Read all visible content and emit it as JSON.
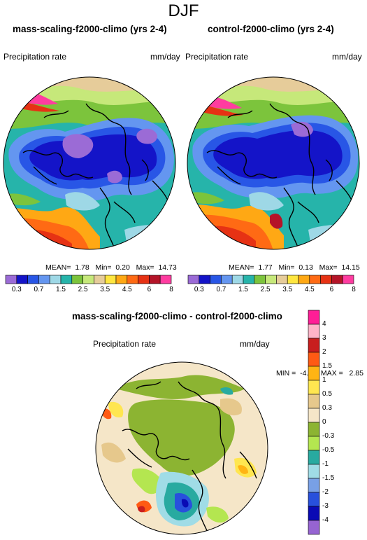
{
  "title": "DJF",
  "panels": [
    {
      "title": "mass-scaling-f2000-climo (yrs 2-4)",
      "variable": "Precipitation rate",
      "units": "mm/day",
      "stats": {
        "mean_label": "MEAN=",
        "mean": "1.78",
        "min_label": "Min=",
        "min": "0.20",
        "max_label": "Max=",
        "max": "14.73"
      }
    },
    {
      "title": "control-f2000-climo (yrs 2-4)",
      "variable": "Precipitation rate",
      "units": "mm/day",
      "stats": {
        "mean_label": "MEAN=",
        "mean": "1.77",
        "min_label": "Min=",
        "min": "0.13",
        "max_label": "Max=",
        "max": "14.15"
      }
    }
  ],
  "colorbar_top": {
    "colors": [
      "#9b6bd6",
      "#1414c8",
      "#2856e6",
      "#6496f0",
      "#9ed8e6",
      "#26b4aa",
      "#7cc43c",
      "#c6e87a",
      "#e6cc9a",
      "#ffe640",
      "#ffa814",
      "#ff6a14",
      "#e63214",
      "#b41428",
      "#ff3ca0"
    ],
    "labels": [
      "0.3",
      "0.7",
      "1.5",
      "2.5",
      "3.5",
      "4.5",
      "6",
      "8"
    ]
  },
  "diff_panel": {
    "title": "mass-scaling-f2000-climo - control-f2000-climo",
    "variable": "Precipitation rate",
    "units": "mm/day",
    "stats": {
      "min_label": "MIN =",
      "min": "-4.80",
      "max_label": "MAX =",
      "max": "2.85"
    }
  },
  "colorbar_diff": {
    "colors": [
      "#ff1e96",
      "#ffb4c8",
      "#c81e1e",
      "#ff5a14",
      "#ffb414",
      "#ffe650",
      "#e6c88c",
      "#f5e6c8",
      "#8cb432",
      "#b4e650",
      "#28aaa0",
      "#a0dce6",
      "#78a0e6",
      "#2850dc",
      "#0a0ab4",
      "#9664d2"
    ],
    "labels": [
      "4",
      "3",
      "2",
      "1.5",
      "1",
      "0.5",
      "0.3",
      "0",
      "-0.3",
      "-0.5",
      "-1",
      "-1.5",
      "-2",
      "-3",
      "-4"
    ]
  }
}
